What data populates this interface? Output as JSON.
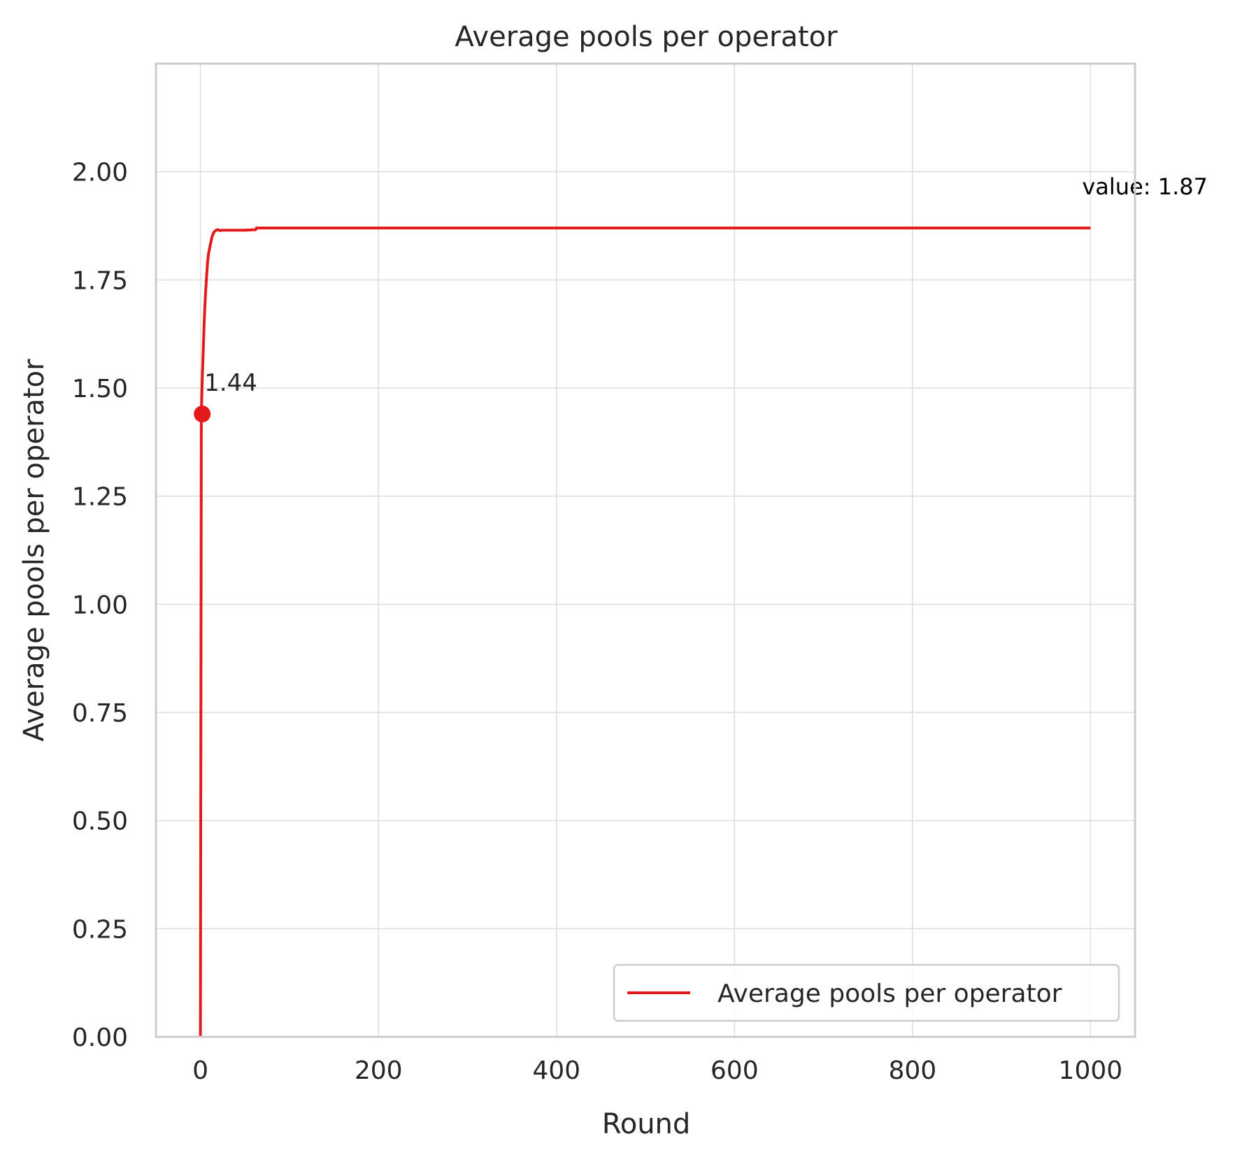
{
  "chart_data": {
    "type": "line",
    "title": "Average pools per operator",
    "xlabel": "Round",
    "ylabel": "Average pools per operator",
    "xlim": [
      -50,
      1050
    ],
    "ylim": [
      0,
      2.25
    ],
    "xticks": [
      0,
      200,
      400,
      600,
      800,
      1000
    ],
    "xtick_labels": [
      "0",
      "200",
      "400",
      "600",
      "800",
      "1000"
    ],
    "yticks": [
      0,
      0.25,
      0.5,
      0.75,
      1.0,
      1.25,
      1.5,
      1.75,
      2.0
    ],
    "ytick_labels": [
      "0.00",
      "0.25",
      "0.50",
      "0.75",
      "1.00",
      "1.25",
      "1.50",
      "1.75",
      "2.00"
    ],
    "grid": true,
    "legend": {
      "position": "lower-right",
      "entries": [
        "Average pools per operator"
      ]
    },
    "series": [
      {
        "name": "Average pools per operator",
        "color": "#e31a1c",
        "x": [
          0,
          1,
          2,
          3,
          4,
          5,
          6,
          7,
          8,
          9,
          10,
          11,
          12,
          13,
          14,
          15,
          16,
          17,
          18,
          19,
          20,
          22,
          25,
          30,
          40,
          50,
          60,
          62,
          63,
          70,
          100,
          200,
          400,
          600,
          800,
          1000
        ],
        "y": [
          0.0,
          1.44,
          1.52,
          1.58,
          1.64,
          1.69,
          1.73,
          1.76,
          1.79,
          1.81,
          1.82,
          1.83,
          1.84,
          1.85,
          1.855,
          1.86,
          1.862,
          1.864,
          1.865,
          1.866,
          1.866,
          1.864,
          1.865,
          1.865,
          1.865,
          1.865,
          1.866,
          1.866,
          1.87,
          1.87,
          1.87,
          1.87,
          1.87,
          1.87,
          1.87,
          1.87
        ]
      }
    ],
    "annotations": [
      {
        "text": "1.44",
        "x": 2,
        "y": 1.44,
        "marker": true
      },
      {
        "text": "value: 1.87",
        "x": 1000,
        "y": 1.87,
        "marker": false
      }
    ]
  }
}
